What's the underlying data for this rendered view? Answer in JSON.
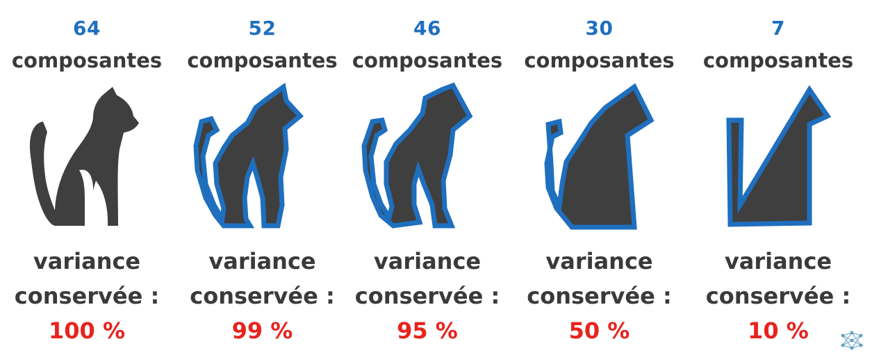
{
  "panels": [
    {
      "components": "64",
      "components_label": "composantes",
      "variance_label": "variance",
      "conserved_label": "conservée :",
      "percent": "100 %",
      "shape": "cat-full-icon"
    },
    {
      "components": "52",
      "components_label": "composantes",
      "variance_label": "variance",
      "conserved_label": "conservée :",
      "percent": "99 %",
      "shape": "cat-52-icon"
    },
    {
      "components": "46",
      "components_label": "composantes",
      "variance_label": "variance",
      "conserved_label": "conservée :",
      "percent": "95 %",
      "shape": "cat-46-icon"
    },
    {
      "components": "30",
      "components_label": "composantes",
      "variance_label": "variance",
      "conserved_label": "conservée :",
      "percent": "50 %",
      "shape": "cat-30-icon"
    },
    {
      "components": "7",
      "components_label": "composantes",
      "variance_label": "variance",
      "conserved_label": "conservée :",
      "percent": "10 %",
      "shape": "cat-7-icon"
    }
  ],
  "colors": {
    "count": "#1f6fbf",
    "text": "#3a3a3a",
    "percent": "#e8231d",
    "cat_fill": "#3f3f3f",
    "outline": "#1f6fbf"
  },
  "logo_icon": "network-logo-icon"
}
